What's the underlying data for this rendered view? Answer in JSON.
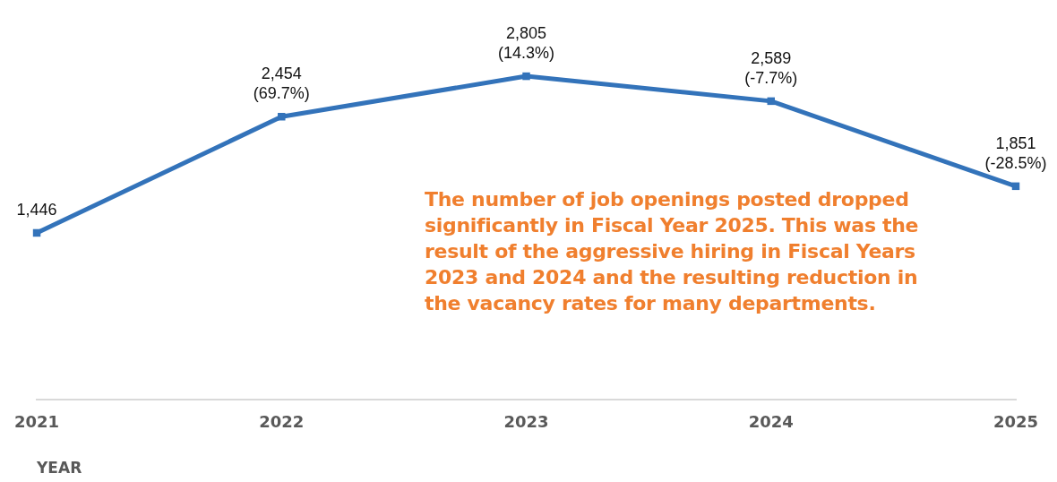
{
  "chart_data": {
    "type": "line",
    "xlabel": "YEAR",
    "categories": [
      "2021",
      "2022",
      "2023",
      "2024",
      "2025"
    ],
    "series": [
      {
        "color": "#3373ba",
        "values": [
          1446,
          2454,
          2805,
          2589,
          1851
        ],
        "value_labels": [
          "1,446",
          "2,454\n(69.7%)",
          "2,805\n(14.3%)",
          "2,589\n(-7.7%)",
          "1,851\n(-28.5%)"
        ]
      }
    ],
    "marker": "square",
    "line_style": "solid",
    "legend": false,
    "grid": false,
    "annotations": [
      "The number of job openings posted dropped significantly in Fiscal Year 2025. This was the result of the aggressive hiring in Fiscal Years 2023 and 2024 and the resulting reduction in the vacancy rates for many departments."
    ]
  }
}
